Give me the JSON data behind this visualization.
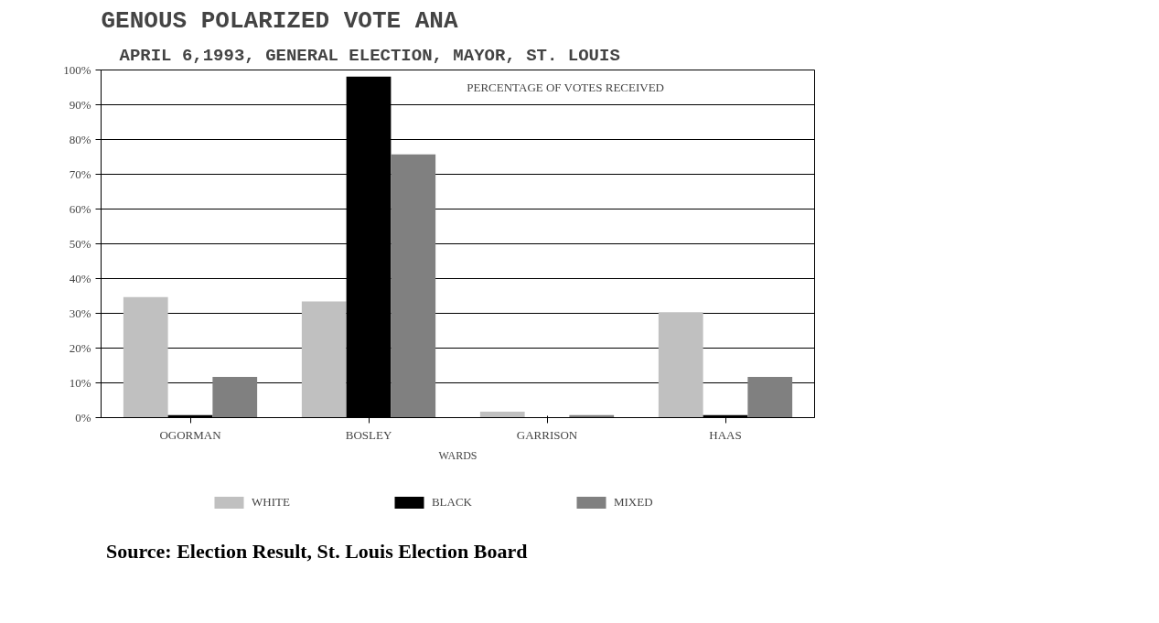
{
  "chart_data": {
    "type": "bar",
    "title": "GENOUS POLARIZED VOTE ANA",
    "subtitle": "APRIL 6,1993, GENERAL ELECTION, MAYOR, ST. LOUIS",
    "xlabel": "WARDS",
    "categories": [
      "OGORMAN",
      "BOSLEY",
      "GARRISON",
      "HAAS"
    ],
    "series": [
      {
        "name": "WHITE",
        "color": "#c0c0c0",
        "values": [
          34.7,
          33.4,
          1.7,
          30.3
        ]
      },
      {
        "name": "BLACK",
        "color": "#000000",
        "values": [
          0.7,
          98.1,
          0,
          0.7
        ]
      },
      {
        "name": "MIXED",
        "color": "#808080",
        "values": [
          11.7,
          75.7,
          0.7,
          11.7
        ]
      }
    ],
    "ylim": [
      0,
      100
    ],
    "yticks": [
      {
        "value": 0,
        "label": "0%"
      },
      {
        "value": 10,
        "label": "10%"
      },
      {
        "value": 20,
        "label": "20%"
      },
      {
        "value": 30,
        "label": "30%"
      },
      {
        "value": 40,
        "label": "40%"
      },
      {
        "value": 50,
        "label": "50%"
      },
      {
        "value": 60,
        "label": "60%"
      },
      {
        "value": 70,
        "label": "70%"
      },
      {
        "value": 80,
        "label": "80%"
      },
      {
        "value": 90,
        "label": "90%"
      },
      {
        "value": 100,
        "label": "100%"
      }
    ],
    "grid": "y",
    "legend": "bottom",
    "annotations": [
      "PERCENTAGE OF VOTES RECEIVED",
      "Source: Election Result, St. Louis Election Board"
    ]
  }
}
